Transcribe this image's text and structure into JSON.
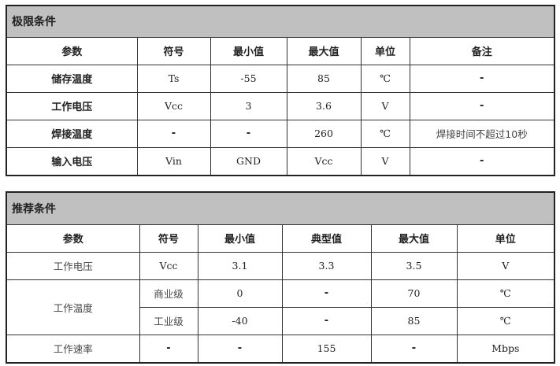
{
  "limits": {
    "title": "极限条件",
    "headers": [
      "参数",
      "符号",
      "最小值",
      "最大值",
      "单位",
      "备注"
    ],
    "rows": [
      [
        "储存温度",
        "Ts",
        "-55",
        "85",
        "℃",
        "-"
      ],
      [
        "工作电压",
        "Vcc",
        "3",
        "3.6",
        "V",
        "-"
      ],
      [
        "焊接温度",
        "-",
        "-",
        "260",
        "℃",
        "焊接时间不超过10秒"
      ],
      [
        "输入电压",
        "Vin",
        "GND",
        "Vcc",
        "V",
        "-"
      ]
    ]
  },
  "recommended": {
    "title": "推荐条件",
    "headers": [
      "参数",
      "符号",
      "最小值",
      "典型值",
      "最大值",
      "单位"
    ],
    "rows": [
      [
        "工作电压",
        "Vcc",
        "3.1",
        "3.3",
        "3.5",
        "V"
      ],
      [
        "工作温度",
        "商业级",
        "0",
        "-",
        "70",
        "℃"
      ],
      [
        "",
        "工业级",
        "-40",
        "-",
        "85",
        "℃"
      ],
      [
        "工作速率",
        "-",
        "-",
        "155",
        "-",
        "Mbps"
      ]
    ]
  }
}
